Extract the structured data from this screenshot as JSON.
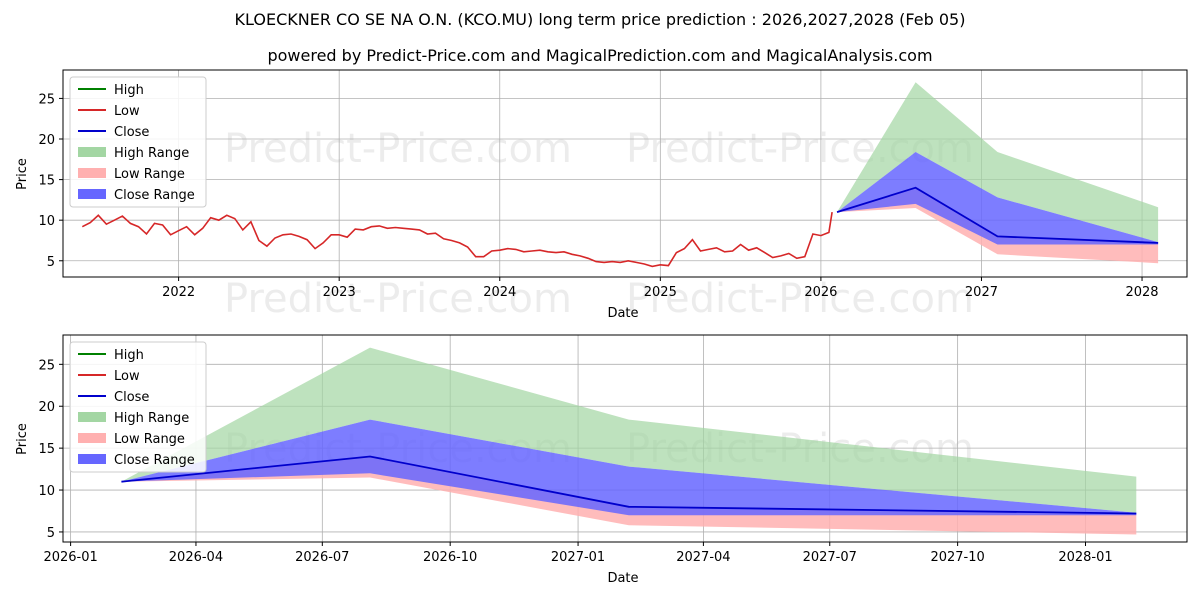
{
  "title_line1": "KLOECKNER CO SE NA O.N. (KCO.MU) long term price prediction : 2026,2027,2028 (Feb 05)",
  "title_line2": "powered by Predict-Price.com and MagicalPrediction.com and MagicalAnalysis.com",
  "watermark": "Predict-Price.com",
  "colors": {
    "high": "#008000",
    "low": "#d62728",
    "close": "#0000cc",
    "high_range": "#a3d6a3",
    "low_range": "#ffb0b0",
    "close_range": "#6666ff",
    "grid": "#b0b0b0"
  },
  "legend": [
    "High",
    "Low",
    "Close",
    "High Range",
    "Low Range",
    "Close Range"
  ],
  "chart_data": [
    {
      "type": "line",
      "name": "history-and-forecast",
      "xlabel": "Date",
      "ylabel": "Price",
      "xlim": [
        2021.28,
        2028.28
      ],
      "ylim": [
        3,
        28.5
      ],
      "xticks": [
        2022,
        2023,
        2024,
        2025,
        2026,
        2027,
        2028
      ],
      "xtick_labels": [
        "2022",
        "2023",
        "2024",
        "2025",
        "2026",
        "2027",
        "2028"
      ],
      "yticks": [
        5,
        10,
        15,
        20,
        25
      ],
      "ytick_labels": [
        "5",
        "10",
        "15",
        "20",
        "25"
      ],
      "legend_position": "top-left",
      "history_low": [
        [
          2021.4,
          9.2
        ],
        [
          2021.45,
          9.7
        ],
        [
          2021.5,
          10.6
        ],
        [
          2021.55,
          9.5
        ],
        [
          2021.6,
          10.0
        ],
        [
          2021.65,
          10.5
        ],
        [
          2021.7,
          9.6
        ],
        [
          2021.75,
          9.2
        ],
        [
          2021.8,
          8.3
        ],
        [
          2021.85,
          9.6
        ],
        [
          2021.9,
          9.4
        ],
        [
          2021.95,
          8.2
        ],
        [
          2022.0,
          8.7
        ],
        [
          2022.05,
          9.2
        ],
        [
          2022.1,
          8.2
        ],
        [
          2022.15,
          9.0
        ],
        [
          2022.2,
          10.3
        ],
        [
          2022.25,
          10.0
        ],
        [
          2022.3,
          10.6
        ],
        [
          2022.35,
          10.2
        ],
        [
          2022.4,
          8.8
        ],
        [
          2022.45,
          9.8
        ],
        [
          2022.5,
          7.5
        ],
        [
          2022.55,
          6.8
        ],
        [
          2022.6,
          7.8
        ],
        [
          2022.65,
          8.2
        ],
        [
          2022.7,
          8.3
        ],
        [
          2022.75,
          8.0
        ],
        [
          2022.8,
          7.6
        ],
        [
          2022.85,
          6.5
        ],
        [
          2022.9,
          7.2
        ],
        [
          2022.95,
          8.2
        ],
        [
          2023.0,
          8.2
        ],
        [
          2023.05,
          7.9
        ],
        [
          2023.1,
          8.9
        ],
        [
          2023.15,
          8.8
        ],
        [
          2023.2,
          9.2
        ],
        [
          2023.25,
          9.3
        ],
        [
          2023.3,
          9.0
        ],
        [
          2023.35,
          9.1
        ],
        [
          2023.4,
          9.0
        ],
        [
          2023.45,
          8.9
        ],
        [
          2023.5,
          8.8
        ],
        [
          2023.55,
          8.3
        ],
        [
          2023.6,
          8.4
        ],
        [
          2023.65,
          7.7
        ],
        [
          2023.7,
          7.5
        ],
        [
          2023.75,
          7.2
        ],
        [
          2023.8,
          6.7
        ],
        [
          2023.85,
          5.5
        ],
        [
          2023.9,
          5.5
        ],
        [
          2023.95,
          6.2
        ],
        [
          2024.0,
          6.3
        ],
        [
          2024.05,
          6.5
        ],
        [
          2024.1,
          6.4
        ],
        [
          2024.15,
          6.1
        ],
        [
          2024.2,
          6.2
        ],
        [
          2024.25,
          6.3
        ],
        [
          2024.3,
          6.1
        ],
        [
          2024.35,
          6.0
        ],
        [
          2024.4,
          6.1
        ],
        [
          2024.45,
          5.8
        ],
        [
          2024.5,
          5.6
        ],
        [
          2024.55,
          5.3
        ],
        [
          2024.6,
          4.9
        ],
        [
          2024.65,
          4.8
        ],
        [
          2024.7,
          4.9
        ],
        [
          2024.75,
          4.8
        ],
        [
          2024.8,
          5.0
        ],
        [
          2024.85,
          4.8
        ],
        [
          2024.9,
          4.6
        ],
        [
          2024.95,
          4.3
        ],
        [
          2025.0,
          4.5
        ],
        [
          2025.05,
          4.4
        ],
        [
          2025.1,
          6.0
        ],
        [
          2025.15,
          6.5
        ],
        [
          2025.2,
          7.6
        ],
        [
          2025.25,
          6.2
        ],
        [
          2025.3,
          6.4
        ],
        [
          2025.35,
          6.6
        ],
        [
          2025.4,
          6.1
        ],
        [
          2025.45,
          6.2
        ],
        [
          2025.5,
          7.0
        ],
        [
          2025.55,
          6.3
        ],
        [
          2025.6,
          6.6
        ],
        [
          2025.65,
          6.0
        ],
        [
          2025.7,
          5.4
        ],
        [
          2025.75,
          5.6
        ],
        [
          2025.8,
          5.9
        ],
        [
          2025.85,
          5.3
        ],
        [
          2025.9,
          5.5
        ],
        [
          2025.95,
          8.3
        ],
        [
          2026.0,
          8.1
        ],
        [
          2026.05,
          8.5
        ],
        [
          2026.07,
          11.0
        ]
      ],
      "forecast_dates": [
        "2026-02",
        "2026-08",
        "2027-02",
        "2028-02"
      ],
      "forecast_x": [
        2026.1,
        2026.59,
        2027.1,
        2028.1
      ],
      "close": [
        11.0,
        14.0,
        8.0,
        7.2
      ],
      "close_range_low": [
        11.0,
        12.0,
        7.0,
        7.0
      ],
      "close_range_high": [
        11.0,
        18.4,
        12.8,
        7.3
      ],
      "low_range_low": [
        11.0,
        11.5,
        5.8,
        4.7
      ],
      "low_range_high": [
        11.0,
        14.0,
        8.0,
        7.2
      ],
      "high_range_low": [
        11.0,
        18.4,
        12.8,
        7.3
      ],
      "high_range_high": [
        11.0,
        27.0,
        18.4,
        11.6
      ]
    },
    {
      "type": "line",
      "name": "forecast-detail",
      "xlabel": "Date",
      "ylabel": "Price",
      "xlim": [
        2025.985,
        2028.2
      ],
      "ylim": [
        3.8,
        28.5
      ],
      "xticks": [
        2026.0,
        2026.247,
        2026.496,
        2026.748,
        2027.0,
        2027.247,
        2027.496,
        2027.748,
        2028.0
      ],
      "xtick_labels": [
        "2026-01",
        "2026-04",
        "2026-07",
        "2026-10",
        "2027-01",
        "2027-04",
        "2027-07",
        "2027-10",
        "2028-01"
      ],
      "yticks": [
        5,
        10,
        15,
        20,
        25
      ],
      "ytick_labels": [
        "5",
        "10",
        "15",
        "20",
        "25"
      ],
      "legend_position": "top-left"
    }
  ]
}
